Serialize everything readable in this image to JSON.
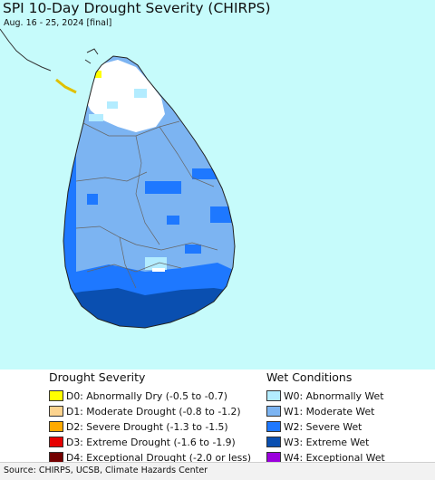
{
  "header": {
    "title": "SPI 10-Day Drought Severity (CHIRPS)",
    "subtitle": "Aug. 16 - 25, 2024 [final]"
  },
  "map": {
    "ocean_color": "#c6fbfb",
    "land_base_color": "#7cb4f2"
  },
  "legend": {
    "drought": {
      "heading": "Drought Severity",
      "items": [
        {
          "label": "D0: Abnormally Dry (-0.5 to -0.7)",
          "color": "#ffff00"
        },
        {
          "label": "D1: Moderate Drought (-0.8 to -1.2)",
          "color": "#fcd38e"
        },
        {
          "label": "D2: Severe Drought (-1.3 to -1.5)",
          "color": "#ffaa00"
        },
        {
          "label": "D3: Extreme Drought (-1.6 to -1.9)",
          "color": "#e60000"
        },
        {
          "label": "D4: Exceptional Drought (-2.0 or less)",
          "color": "#730000"
        }
      ]
    },
    "wet": {
      "heading": "Wet Conditions",
      "items": [
        {
          "label": "W0: Abnormally Wet",
          "color": "#b3ecff"
        },
        {
          "label": "W1: Moderate Wet",
          "color": "#7cb4f2"
        },
        {
          "label": "W2: Severe Wet",
          "color": "#1e78ff"
        },
        {
          "label": "W3: Extreme Wet",
          "color": "#0a4fb0"
        },
        {
          "label": "W4: Exceptional Wet",
          "color": "#9b00dd"
        }
      ]
    }
  },
  "footer": {
    "source": "Source: CHIRPS, UCSB, Climate Hazards Center"
  }
}
